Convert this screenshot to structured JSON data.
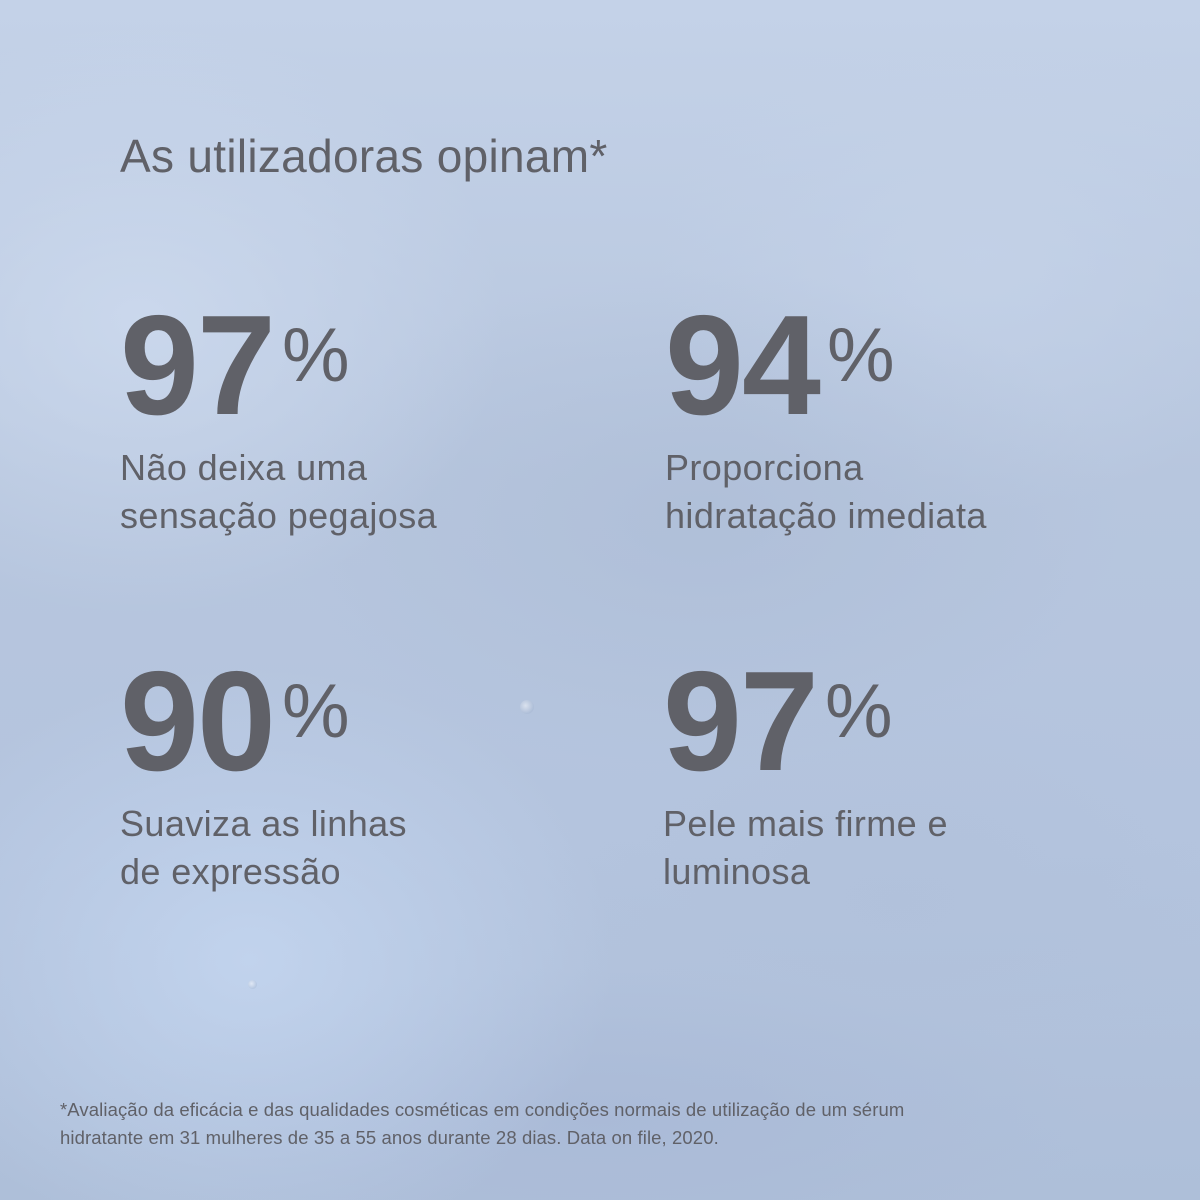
{
  "title": "As utilizadoras opinam*",
  "stats": [
    {
      "value": "97",
      "unit": "%",
      "line1": "Não deixa uma",
      "line2": "sensação pegajosa"
    },
    {
      "value": "94",
      "unit": "%",
      "line1": "Proporciona",
      "line2": "hidratação imediata"
    },
    {
      "value": "90",
      "unit": "%",
      "line1": "Suaviza as linhas",
      "line2": "de expressão"
    },
    {
      "value": "97",
      "unit": "%",
      "line1": "Pele mais firme e",
      "line2": "luminosa"
    }
  ],
  "footnote": {
    "line1": "*Avaliação da eficácia e das qualidades cosméticas em condições normais de utilização de um sérum",
    "line2": "hidratante em 31 mulheres de 35 a 55 anos durante 28 dias. Data on file, 2020."
  },
  "colors": {
    "text": "#606168",
    "background": "#b9c8e0"
  }
}
